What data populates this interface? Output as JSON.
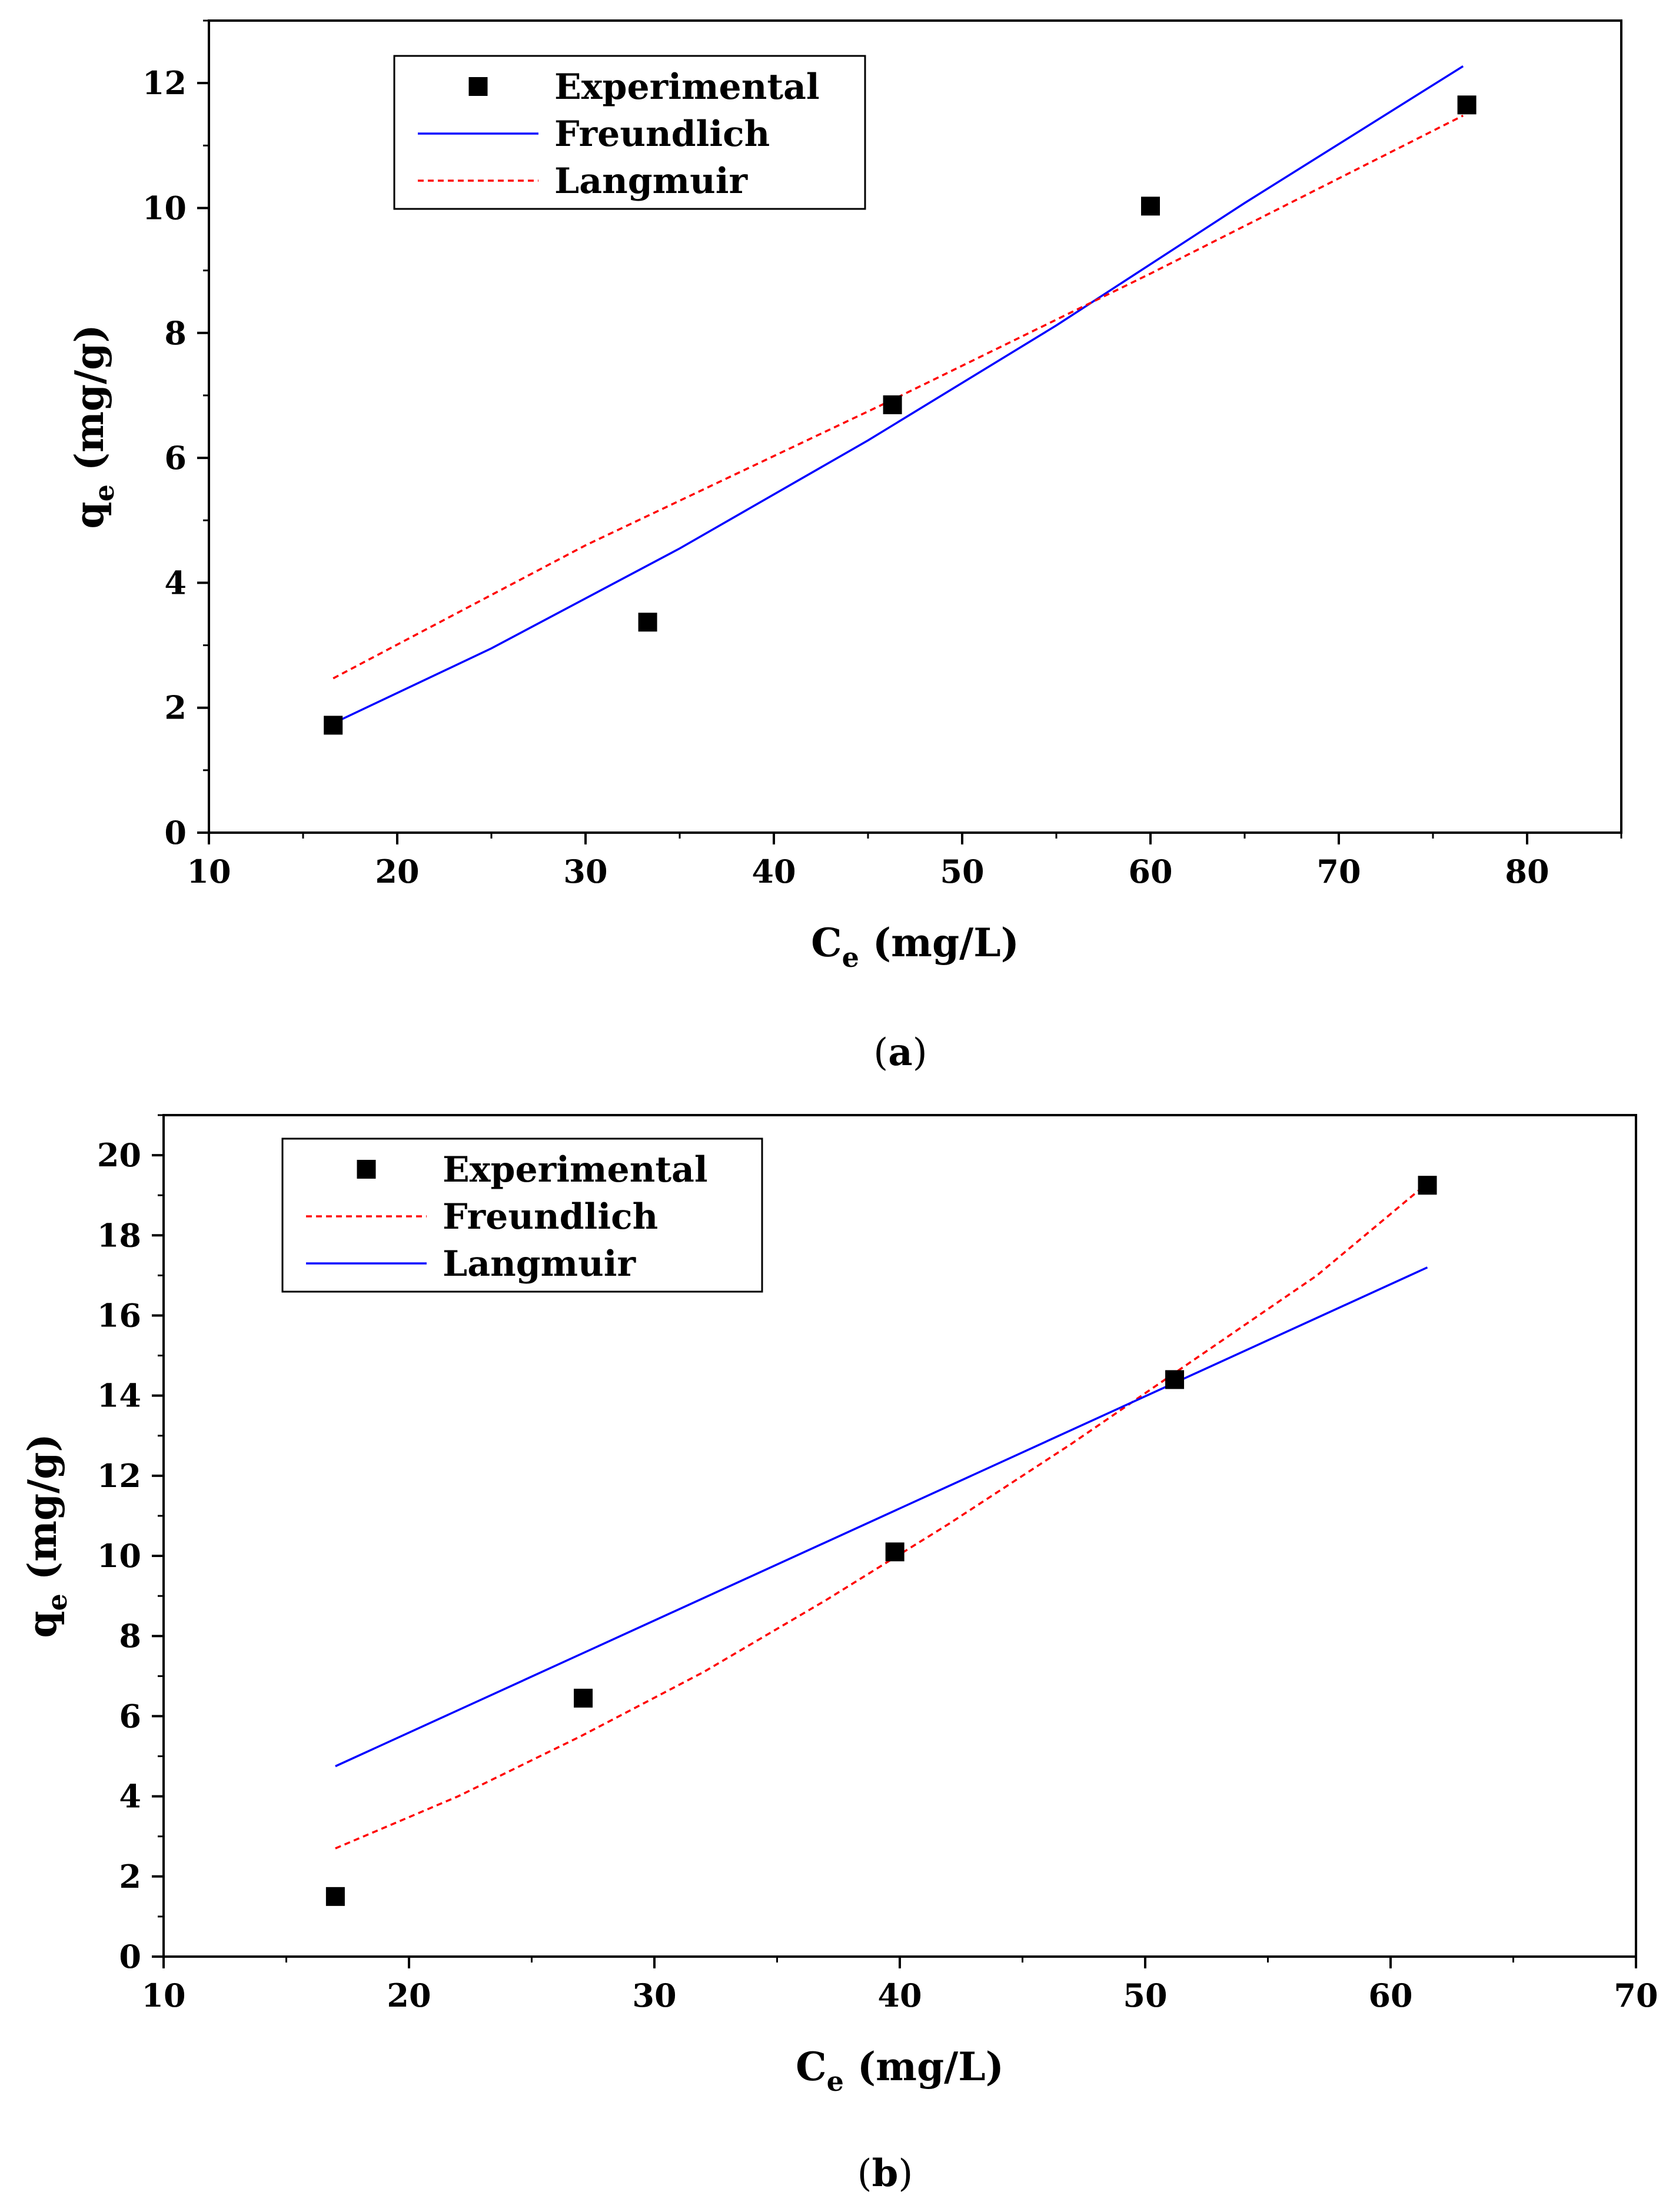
{
  "chart_data": [
    {
      "type": "scatter",
      "panel_label": "(a)",
      "panel_letter": "a",
      "xlabel": "C",
      "xlabel_sub": "e",
      "xlabel_unit": " (mg/L)",
      "ylabel": "q",
      "ylabel_sub": "e",
      "ylabel_unit": " (mg/g)",
      "xlim": [
        10,
        85
      ],
      "ylim": [
        0,
        13
      ],
      "xticks": [
        10,
        20,
        30,
        40,
        50,
        60,
        70,
        80
      ],
      "yticks": [
        0,
        2,
        4,
        6,
        8,
        10,
        12
      ],
      "xminor_step": 5,
      "yminor_step": 1,
      "legend_position": "top-left",
      "series": [
        {
          "name": "Experimental",
          "kind": "marker",
          "color": "#000000",
          "x": [
            16.6,
            33.3,
            46.3,
            60.0,
            76.8
          ],
          "y": [
            1.72,
            3.37,
            6.85,
            10.03,
            11.65
          ]
        },
        {
          "name": "Freundlich",
          "kind": "line",
          "style": "solid",
          "color": "#0000ff",
          "x": [
            16.6,
            25,
            35,
            45,
            55,
            65,
            76.6
          ],
          "y": [
            1.75,
            2.95,
            4.55,
            6.28,
            8.12,
            10.08,
            12.27
          ]
        },
        {
          "name": "Langmuir",
          "kind": "line",
          "style": "dashed",
          "color": "#ff0000",
          "x": [
            16.6,
            30,
            46.3,
            60.0,
            76.6
          ],
          "y": [
            2.47,
            4.6,
            6.93,
            8.95,
            11.48
          ]
        }
      ]
    },
    {
      "type": "scatter",
      "panel_label": "(b)",
      "panel_letter": "b",
      "xlabel": "C",
      "xlabel_sub": "e",
      "xlabel_unit": " (mg/L)",
      "ylabel": "q",
      "ylabel_sub": "e",
      "ylabel_unit": " (mg/g)",
      "xlim": [
        10,
        70
      ],
      "ylim": [
        0,
        21
      ],
      "xticks": [
        10,
        20,
        30,
        40,
        50,
        60,
        70
      ],
      "yticks": [
        0,
        2,
        4,
        6,
        8,
        10,
        12,
        14,
        16,
        18,
        20
      ],
      "xminor_step": 5,
      "yminor_step": 1,
      "legend_position": "top-left",
      "series": [
        {
          "name": "Experimental",
          "kind": "marker",
          "color": "#000000",
          "x": [
            17.0,
            27.1,
            39.8,
            51.2,
            61.5
          ],
          "y": [
            1.5,
            6.45,
            10.1,
            14.4,
            19.25
          ]
        },
        {
          "name": "Freundlich",
          "kind": "line",
          "style": "dashed",
          "color": "#ff0000",
          "x": [
            17.0,
            22,
            27,
            32,
            37,
            42,
            47,
            52,
            57,
            61.5
          ],
          "y": [
            2.7,
            4.0,
            5.5,
            7.1,
            8.9,
            10.8,
            12.8,
            14.9,
            17.0,
            19.3
          ]
        },
        {
          "name": "Langmuir",
          "kind": "line",
          "style": "solid",
          "color": "#0000ff",
          "x": [
            17.0,
            61.5
          ],
          "y": [
            4.75,
            17.2
          ]
        }
      ]
    }
  ]
}
